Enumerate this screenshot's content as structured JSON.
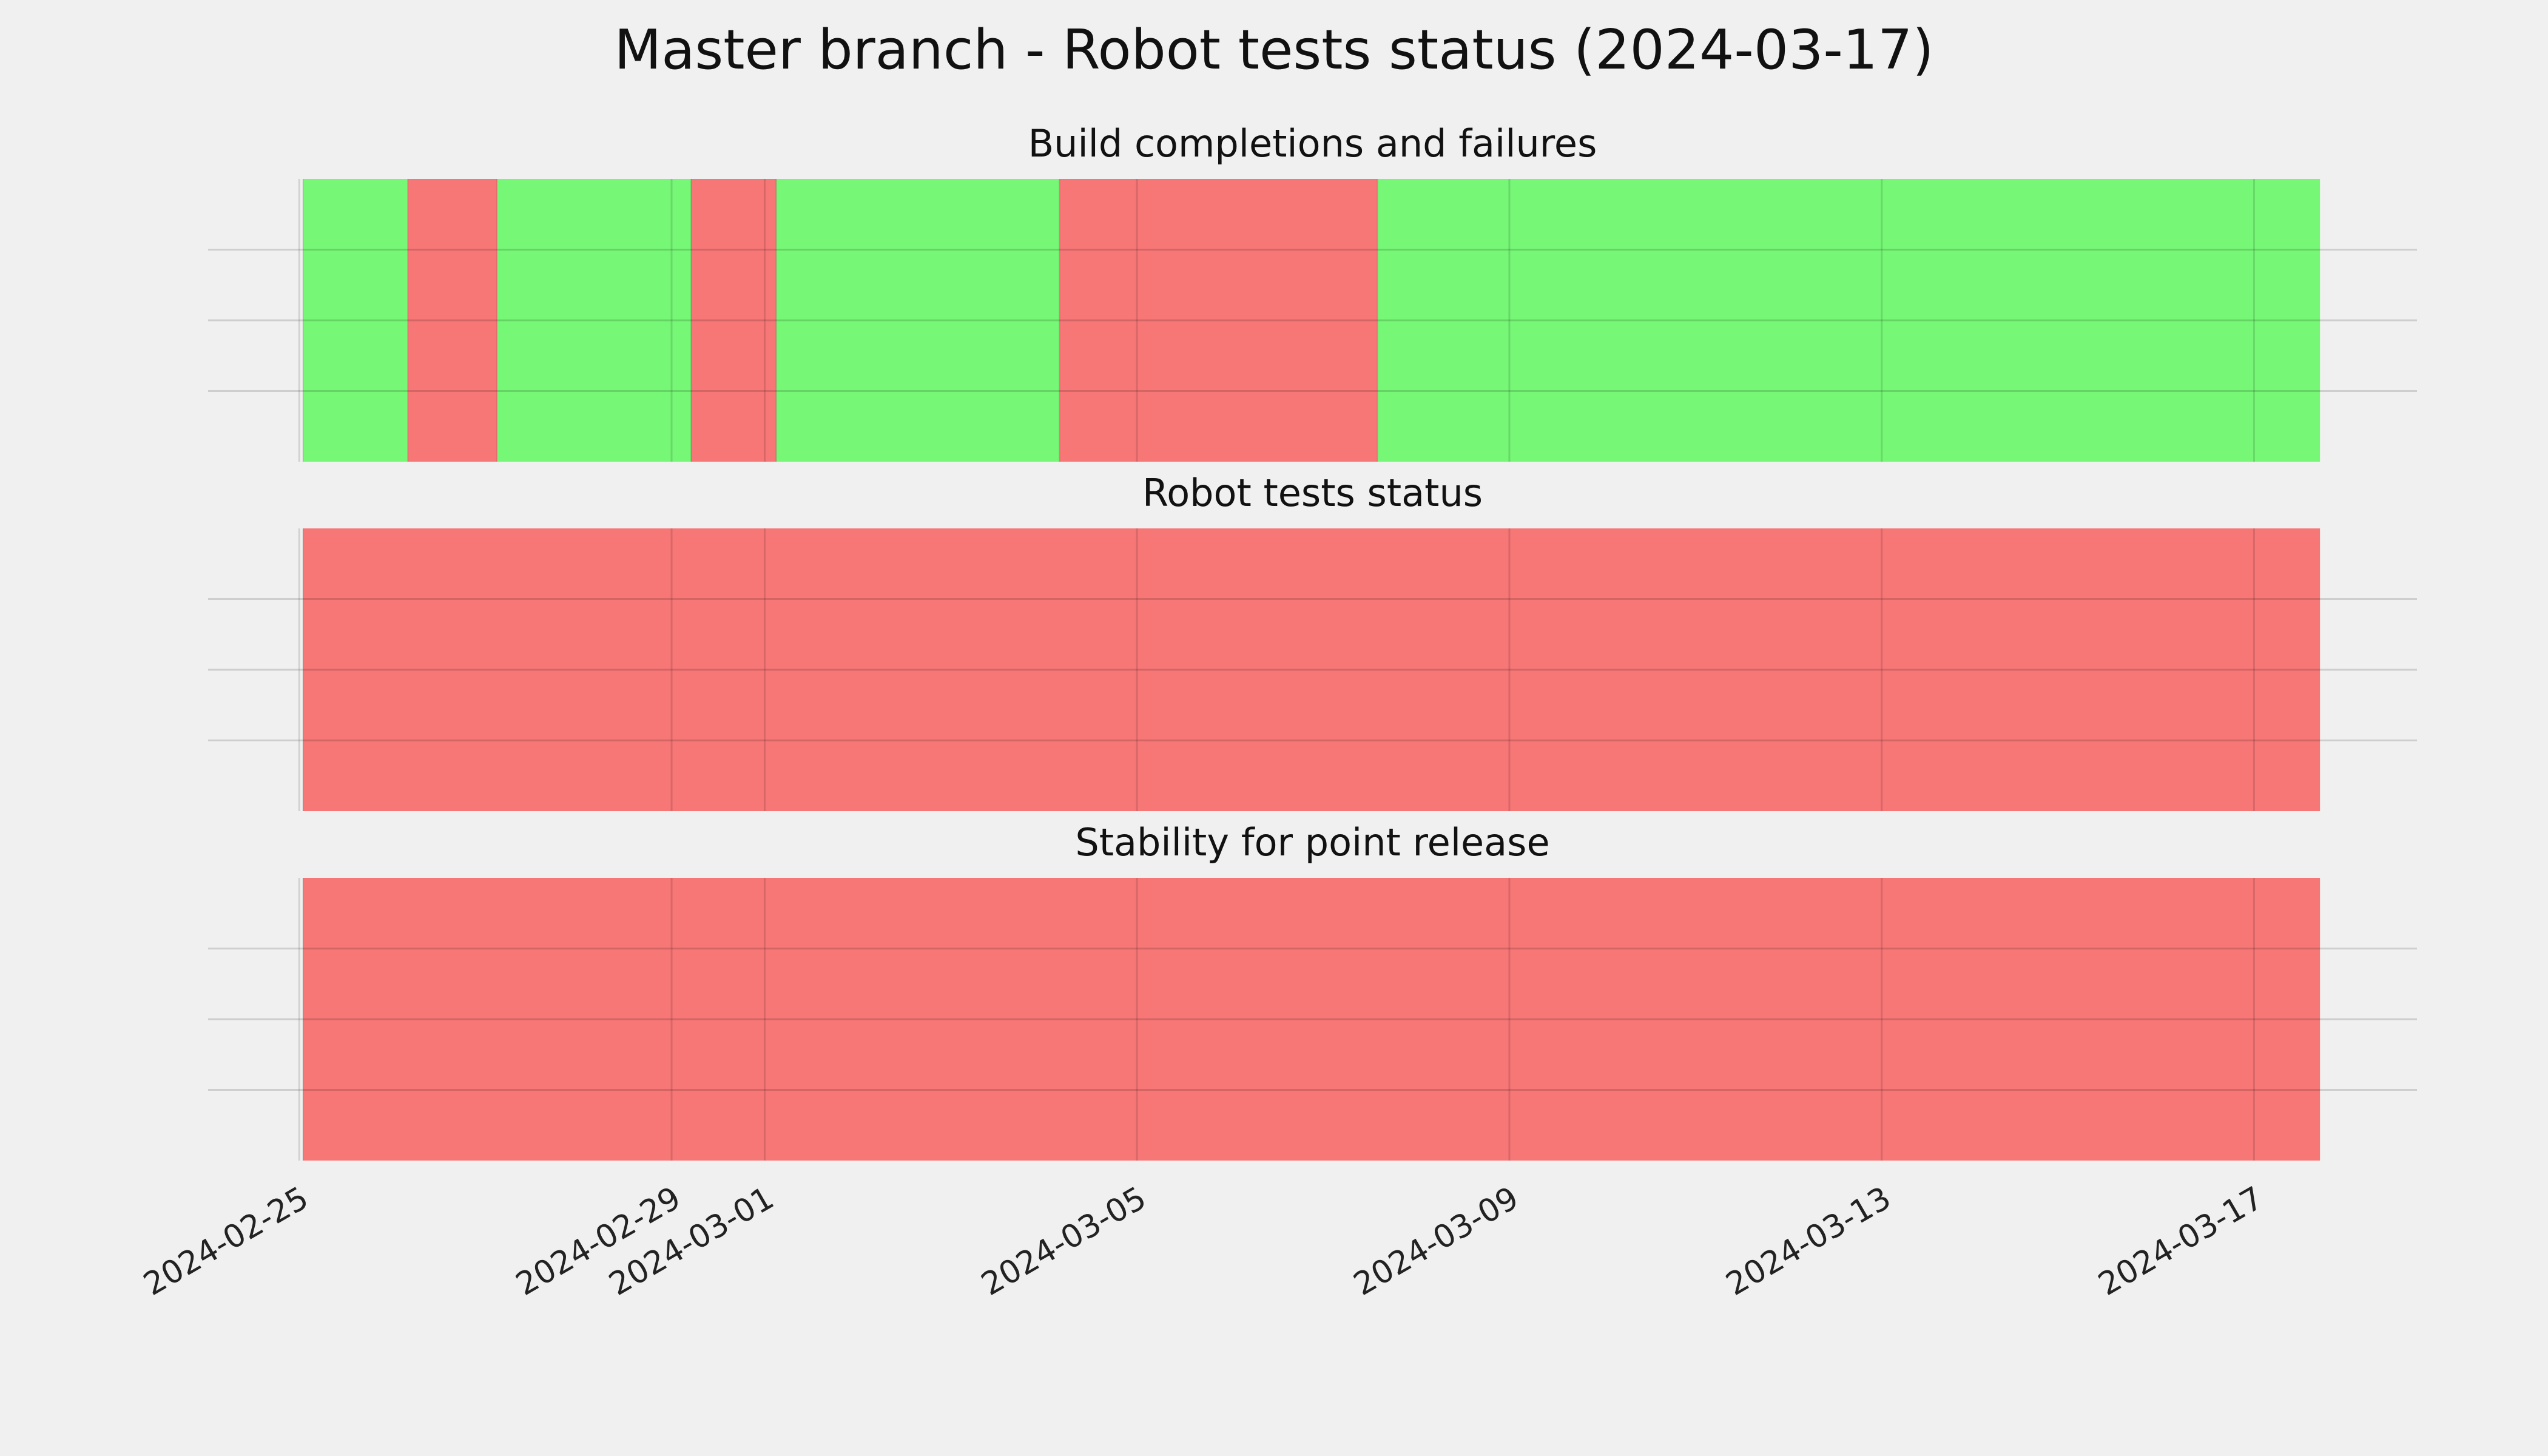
{
  "title": "Master branch - Robot tests status (2024-03-17)",
  "chart_data": [
    {
      "type": "timeline",
      "title": "Build completions and failures",
      "spans": [
        {
          "start": "2024-02-25T01:00",
          "end": "2024-02-26T04:00",
          "color": "#76f776"
        },
        {
          "start": "2024-02-26T04:00",
          "end": "2024-02-27T03:00",
          "color": "#f77676"
        },
        {
          "start": "2024-02-27T03:00",
          "end": "2024-02-29T05:00",
          "color": "#76f776"
        },
        {
          "start": "2024-02-29T05:00",
          "end": "2024-03-01T03:00",
          "color": "#f77676"
        },
        {
          "start": "2024-03-01T03:00",
          "end": "2024-03-04T04:00",
          "color": "#76f776"
        },
        {
          "start": "2024-03-04T04:00",
          "end": "2024-03-07T14:00",
          "color": "#f77676"
        },
        {
          "start": "2024-03-07T14:00",
          "end": "2024-03-17T17:00",
          "color": "#76f776"
        }
      ],
      "xlim": [
        "2024-02-24T00:30",
        "2024-03-18T18:00"
      ],
      "xticks": [
        "2024-02-25",
        "2024-02-29",
        "2024-03-01",
        "2024-03-05",
        "2024-03-09",
        "2024-03-13",
        "2024-03-17"
      ],
      "ylim": [
        0,
        1
      ],
      "yticks": [
        0.25,
        0.5,
        0.75
      ],
      "grid": true
    },
    {
      "type": "timeline",
      "title": "Robot tests status",
      "spans": [
        {
          "start": "2024-02-25T01:00",
          "end": "2024-03-17T17:00",
          "color": "#f77676"
        }
      ],
      "xlim": [
        "2024-02-24T00:30",
        "2024-03-18T18:00"
      ],
      "xticks": [
        "2024-02-25",
        "2024-02-29",
        "2024-03-01",
        "2024-03-05",
        "2024-03-09",
        "2024-03-13",
        "2024-03-17"
      ],
      "ylim": [
        0,
        1
      ],
      "yticks": [
        0.25,
        0.5,
        0.75
      ],
      "grid": true
    },
    {
      "type": "timeline",
      "title": "Stability for point release",
      "spans": [
        {
          "start": "2024-02-25T01:00",
          "end": "2024-03-17T17:00",
          "color": "#f77676"
        }
      ],
      "xlim": [
        "2024-02-24T00:30",
        "2024-03-18T18:00"
      ],
      "xticks": [
        "2024-02-25",
        "2024-02-29",
        "2024-03-01",
        "2024-03-05",
        "2024-03-09",
        "2024-03-13",
        "2024-03-17"
      ],
      "ylim": [
        0,
        1
      ],
      "yticks": [
        0.25,
        0.5,
        0.75
      ],
      "grid": true,
      "show_xtick_labels": true
    }
  ]
}
